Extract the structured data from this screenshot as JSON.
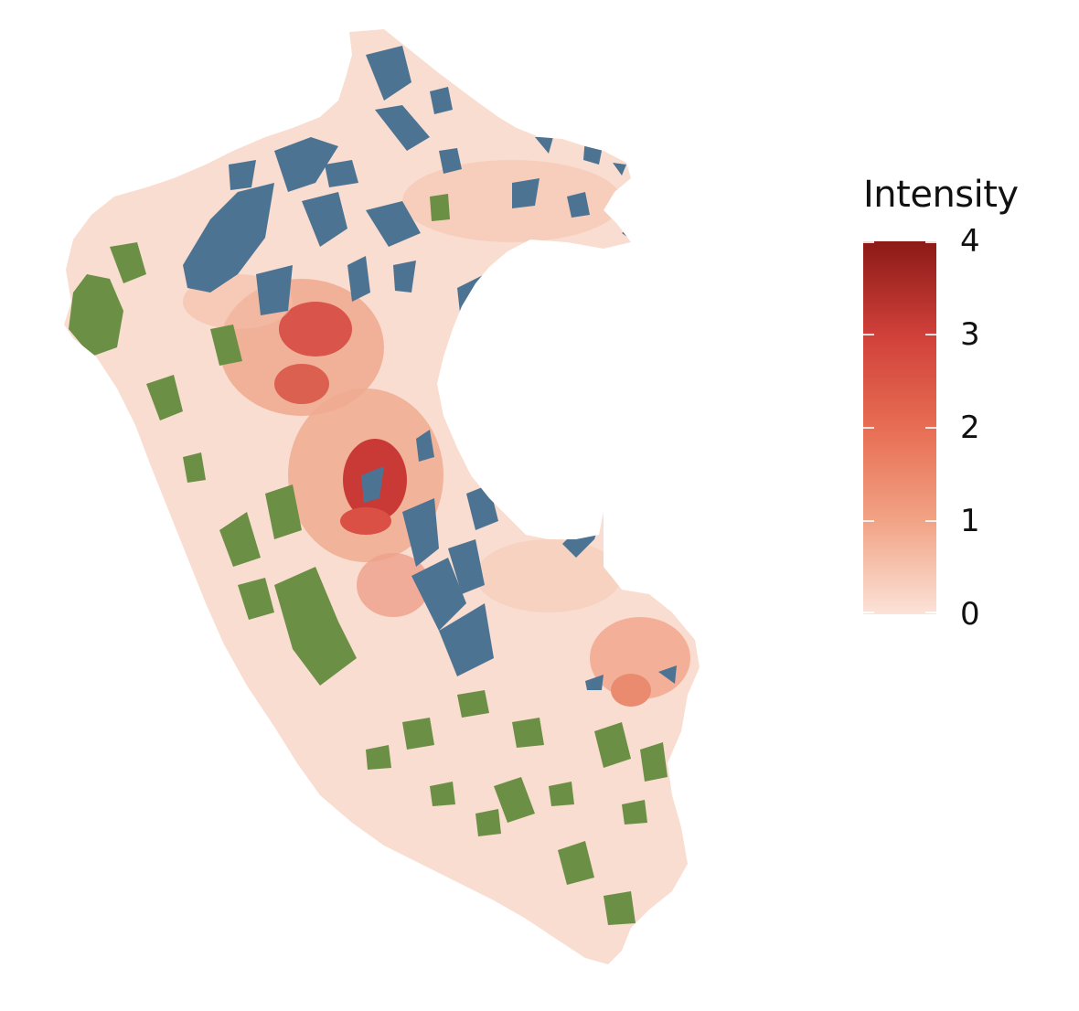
{
  "map": {
    "region": "Peru",
    "fill_scale_colors": [
      "#fbe3d8",
      "#f2a385",
      "#e0503b",
      "#c02a26",
      "#8b1a16"
    ],
    "category_colors": {
      "blue": "#4d7393",
      "green": "#6b8f45"
    },
    "base_color": "#f9ddd0"
  },
  "legend": {
    "title": "Intensity",
    "ticks": [
      "4",
      "3",
      "2",
      "1",
      "0"
    ],
    "min": 0,
    "max": 4
  }
}
